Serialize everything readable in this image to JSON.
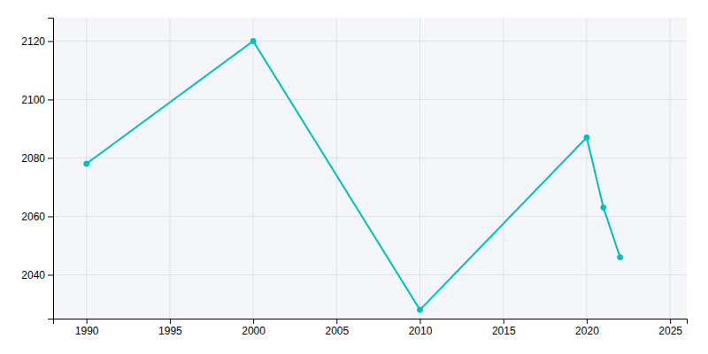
{
  "chart_data": {
    "type": "line",
    "x": [
      1990,
      2000,
      2010,
      2020,
      2021,
      2022
    ],
    "values": [
      2078,
      2120,
      2028,
      2087,
      2063,
      2046
    ],
    "color": "#00BFBF",
    "marker": "circle",
    "xlim": [
      1988,
      2026
    ],
    "ylim": [
      2025,
      2128
    ],
    "xticks": [
      1990,
      1995,
      2000,
      2005,
      2010,
      2015,
      2020,
      2025
    ],
    "yticks": [
      2040,
      2060,
      2080,
      2100,
      2120
    ],
    "grid": true
  }
}
